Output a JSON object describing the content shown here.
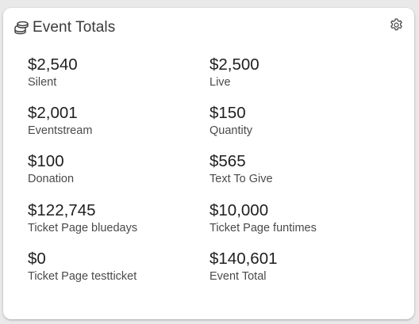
{
  "card": {
    "title": "Event Totals",
    "title_icon": "coins-stack-icon",
    "settings_icon": "gear-icon"
  },
  "totals": [
    {
      "value": "$2,540",
      "label": "Silent"
    },
    {
      "value": "$2,500",
      "label": "Live"
    },
    {
      "value": "$2,001",
      "label": "Eventstream"
    },
    {
      "value": "$150",
      "label": "Quantity"
    },
    {
      "value": "$100",
      "label": "Donation"
    },
    {
      "value": "$565",
      "label": "Text To Give"
    },
    {
      "value": "$122,745",
      "label": "Ticket Page bluedays"
    },
    {
      "value": "$10,000",
      "label": "Ticket Page funtimes"
    },
    {
      "value": "$0",
      "label": "Ticket Page testticket"
    },
    {
      "value": "$140,601",
      "label": "Event Total"
    }
  ],
  "colors": {
    "background": "#e9e9e9",
    "card": "#ffffff",
    "text_primary": "#1f1f1f",
    "text_secondary": "#4a4a4a"
  }
}
